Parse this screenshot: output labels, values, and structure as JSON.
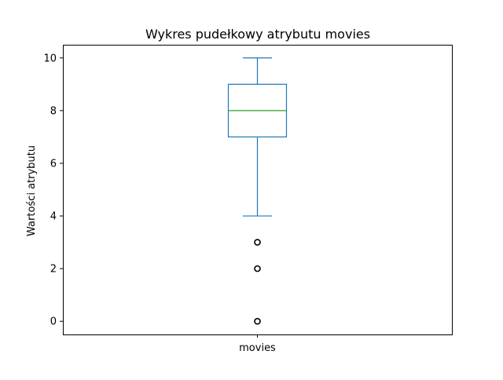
{
  "chart_data": {
    "type": "box",
    "title": "Wykres pudełkowy atrybutu movies",
    "xlabel": "",
    "ylabel": "Wartości atrybutu",
    "categories": [
      "movies"
    ],
    "ylim": [
      -0.5,
      10.5
    ],
    "yticks": [
      "0",
      "2",
      "4",
      "6",
      "8",
      "10"
    ],
    "grid": false,
    "boxes": [
      {
        "name": "movies",
        "whisker_low": 4,
        "q1": 7,
        "median": 8,
        "q3": 9,
        "whisker_high": 10,
        "outliers": [
          3,
          2,
          0
        ]
      }
    ]
  },
  "colors": {
    "box": "#1f77b4",
    "median": "#2ca02c",
    "flier": "#000000",
    "axes": "#000000"
  }
}
